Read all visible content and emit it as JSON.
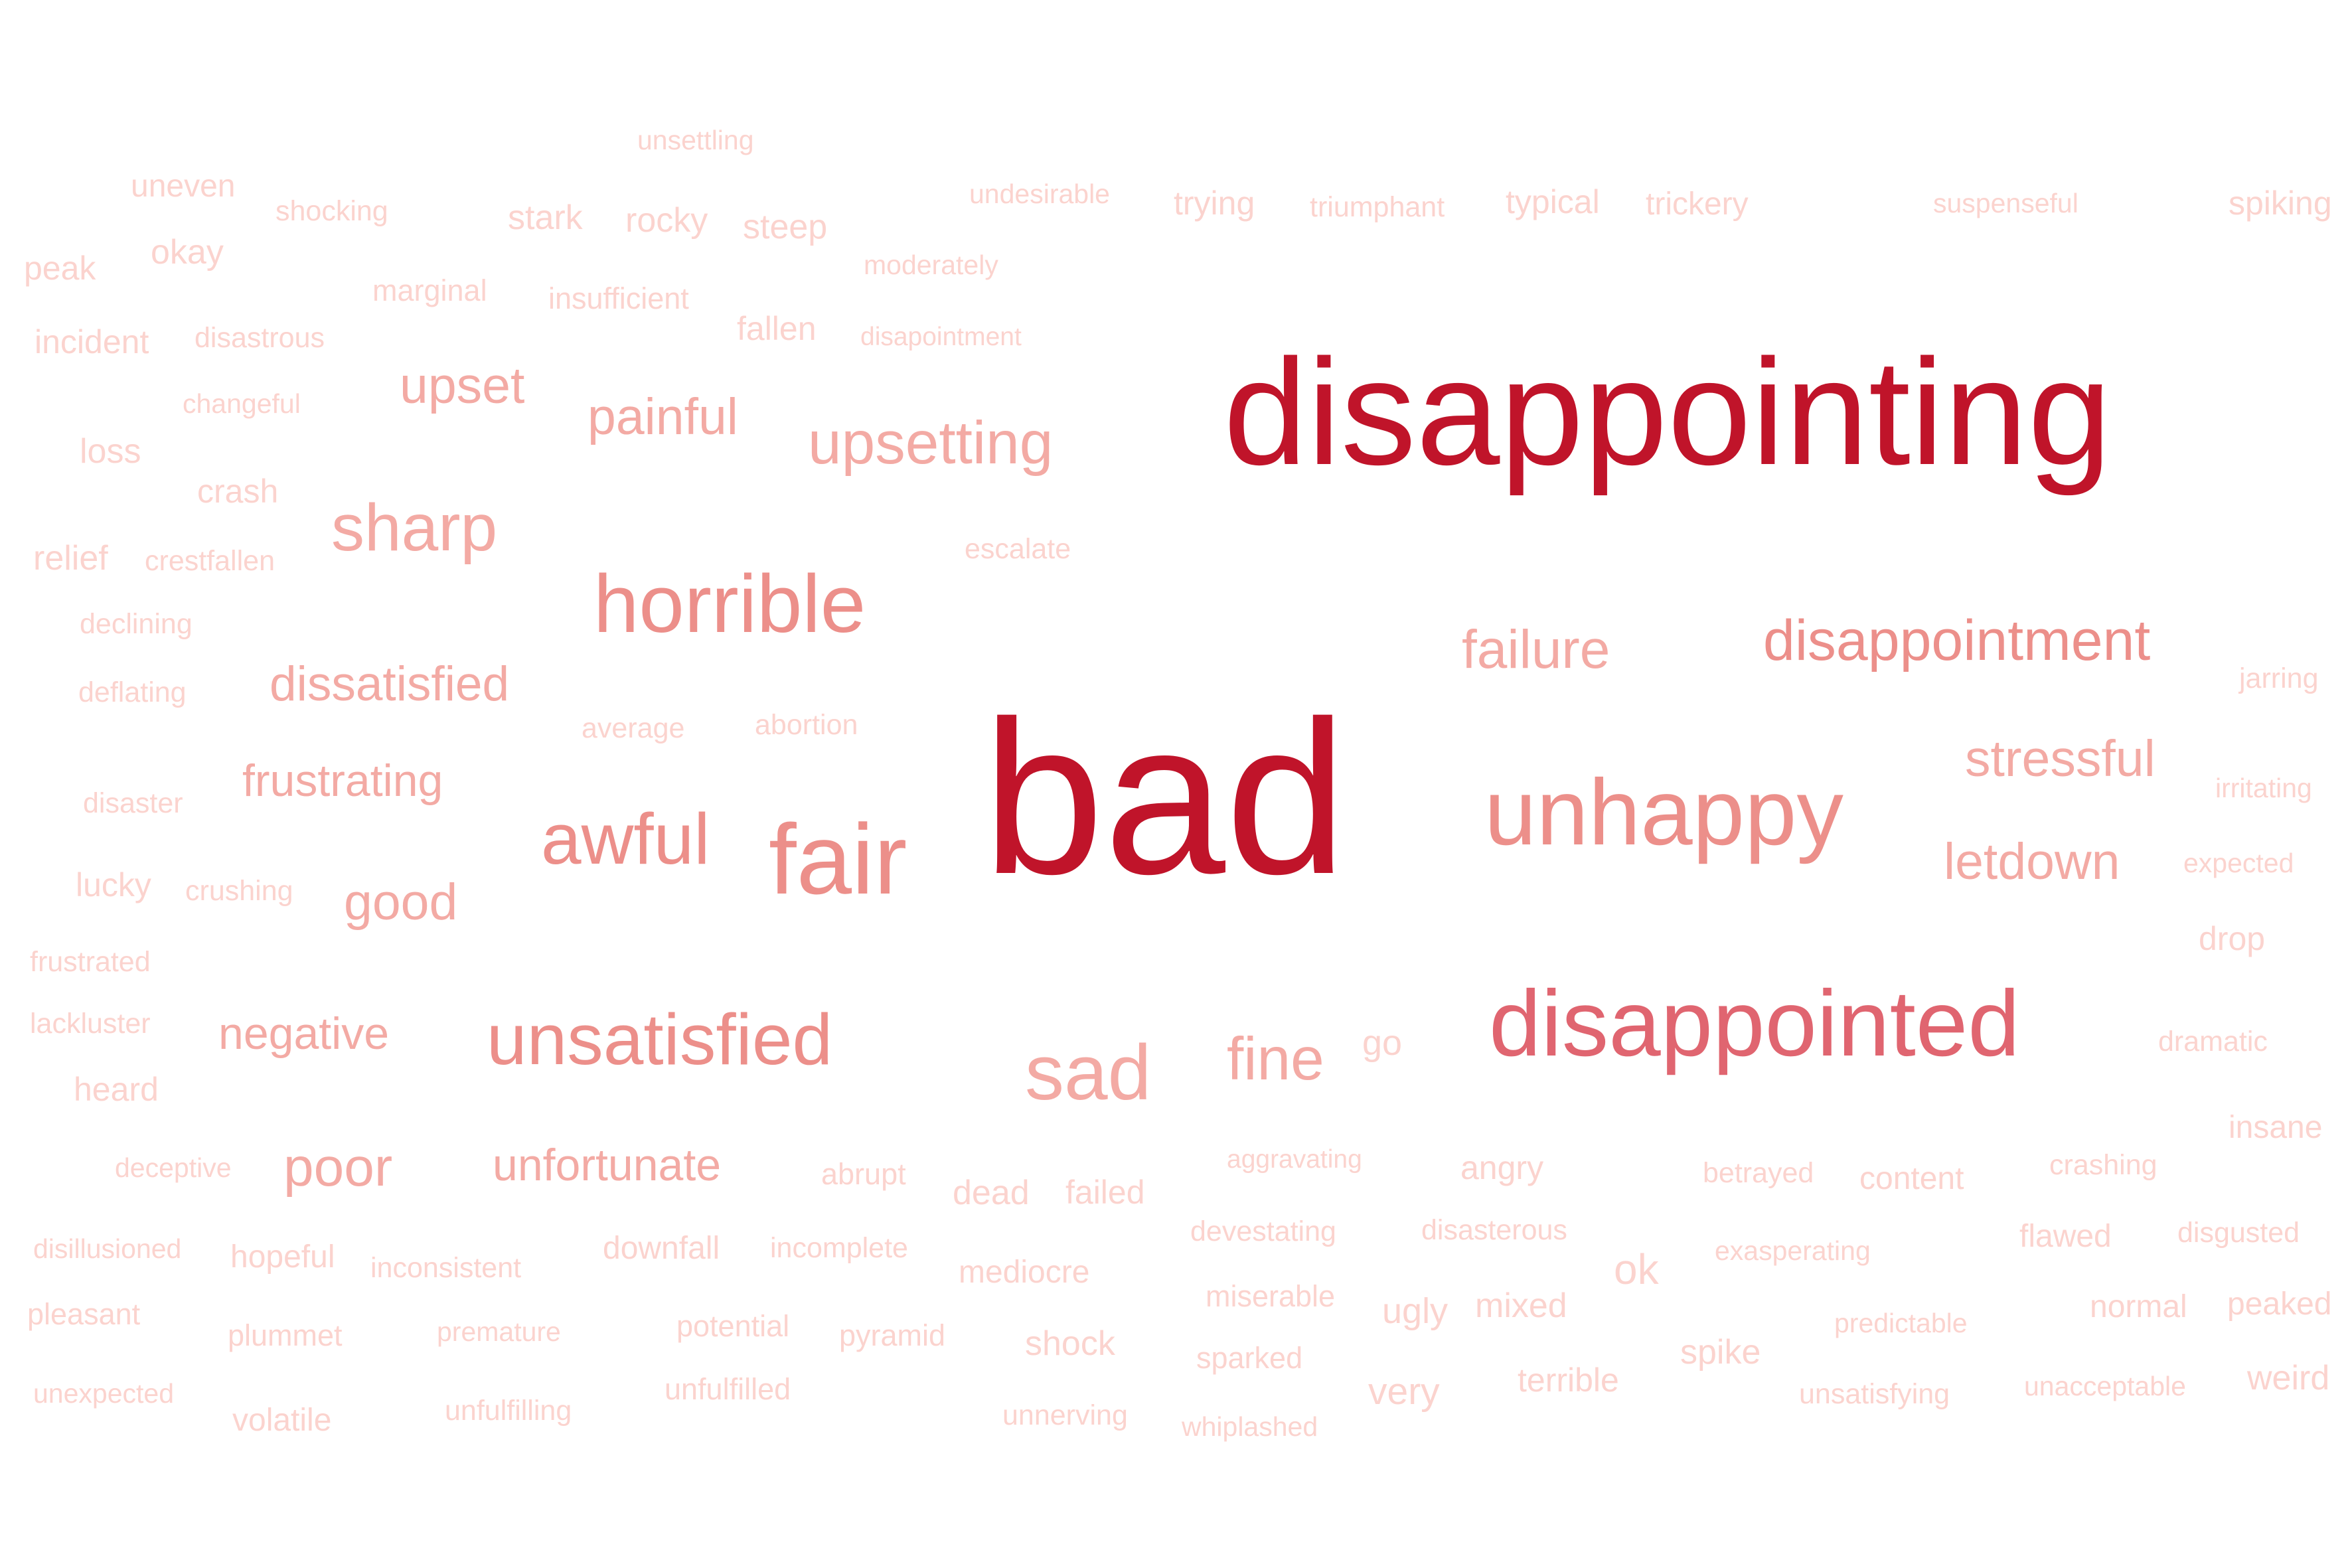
{
  "palette": {
    "darkest": "#c0142a",
    "dark": "#e06570",
    "medium": "#ec8f8a",
    "mediumLight": "#f3aaa4",
    "light": "#f8c3bd",
    "lightest": "#fbd3ce"
  },
  "words": [
    {
      "text": "bad",
      "shade": "darkest"
    },
    {
      "text": "disappointing",
      "shade": "darkest"
    },
    {
      "text": "disappointed",
      "shade": "dark"
    },
    {
      "text": "unhappy",
      "shade": "medium"
    },
    {
      "text": "disappointment",
      "shade": "medium"
    },
    {
      "text": "horrible",
      "shade": "medium"
    },
    {
      "text": "fair",
      "shade": "medium"
    },
    {
      "text": "awful",
      "shade": "medium"
    },
    {
      "text": "unsatisfied",
      "shade": "medium"
    },
    {
      "text": "sad",
      "shade": "mediumLight"
    },
    {
      "text": "failure",
      "shade": "mediumLight"
    },
    {
      "text": "stressful",
      "shade": "mediumLight"
    },
    {
      "text": "letdown",
      "shade": "mediumLight"
    },
    {
      "text": "upsetting",
      "shade": "mediumLight"
    },
    {
      "text": "sharp",
      "shade": "mediumLight"
    },
    {
      "text": "fine",
      "shade": "mediumLight"
    },
    {
      "text": "upset",
      "shade": "mediumLight"
    },
    {
      "text": "painful",
      "shade": "mediumLight"
    },
    {
      "text": "dissatisfied",
      "shade": "mediumLight"
    },
    {
      "text": "frustrating",
      "shade": "mediumLight"
    },
    {
      "text": "good",
      "shade": "mediumLight"
    },
    {
      "text": "negative",
      "shade": "mediumLight"
    },
    {
      "text": "poor",
      "shade": "mediumLight"
    },
    {
      "text": "unfortunate",
      "shade": "mediumLight"
    },
    {
      "text": "unsettling",
      "shade": "lightest"
    },
    {
      "text": "uneven",
      "shade": "lightest"
    },
    {
      "text": "shocking",
      "shade": "lightest"
    },
    {
      "text": "stark",
      "shade": "lightest"
    },
    {
      "text": "rocky",
      "shade": "lightest"
    },
    {
      "text": "steep",
      "shade": "lightest"
    },
    {
      "text": "undesirable",
      "shade": "lightest"
    },
    {
      "text": "trying",
      "shade": "lightest"
    },
    {
      "text": "triumphant",
      "shade": "lightest"
    },
    {
      "text": "typical",
      "shade": "lightest"
    },
    {
      "text": "trickery",
      "shade": "lightest"
    },
    {
      "text": "suspenseful",
      "shade": "lightest"
    },
    {
      "text": "spiking",
      "shade": "lightest"
    },
    {
      "text": "peak",
      "shade": "lightest"
    },
    {
      "text": "okay",
      "shade": "lightest"
    },
    {
      "text": "marginal",
      "shade": "lightest"
    },
    {
      "text": "insufficient",
      "shade": "lightest"
    },
    {
      "text": "moderately",
      "shade": "lightest"
    },
    {
      "text": "incident",
      "shade": "lightest"
    },
    {
      "text": "disastrous",
      "shade": "lightest"
    },
    {
      "text": "fallen",
      "shade": "lightest"
    },
    {
      "text": "disapointment",
      "shade": "lightest"
    },
    {
      "text": "changeful",
      "shade": "lightest"
    },
    {
      "text": "loss",
      "shade": "lightest"
    },
    {
      "text": "crash",
      "shade": "lightest"
    },
    {
      "text": "relief",
      "shade": "lightest"
    },
    {
      "text": "crestfallen",
      "shade": "lightest"
    },
    {
      "text": "escalate",
      "shade": "lightest"
    },
    {
      "text": "declining",
      "shade": "lightest"
    },
    {
      "text": "deflating",
      "shade": "lightest"
    },
    {
      "text": "average",
      "shade": "lightest"
    },
    {
      "text": "abortion",
      "shade": "lightest"
    },
    {
      "text": "jarring",
      "shade": "lightest"
    },
    {
      "text": "disaster",
      "shade": "lightest"
    },
    {
      "text": "irritating",
      "shade": "lightest"
    },
    {
      "text": "lucky",
      "shade": "lightest"
    },
    {
      "text": "crushing",
      "shade": "lightest"
    },
    {
      "text": "expected",
      "shade": "lightest"
    },
    {
      "text": "drop",
      "shade": "lightest"
    },
    {
      "text": "frustrated",
      "shade": "lightest"
    },
    {
      "text": "lackluster",
      "shade": "lightest"
    },
    {
      "text": "go",
      "shade": "lightest"
    },
    {
      "text": "dramatic",
      "shade": "lightest"
    },
    {
      "text": "heard",
      "shade": "lightest"
    },
    {
      "text": "insane",
      "shade": "lightest"
    },
    {
      "text": "deceptive",
      "shade": "lightest"
    },
    {
      "text": "abrupt",
      "shade": "lightest"
    },
    {
      "text": "aggravating",
      "shade": "lightest"
    },
    {
      "text": "angry",
      "shade": "lightest"
    },
    {
      "text": "betrayed",
      "shade": "lightest"
    },
    {
      "text": "crashing",
      "shade": "lightest"
    },
    {
      "text": "dead",
      "shade": "lightest"
    },
    {
      "text": "failed",
      "shade": "lightest"
    },
    {
      "text": "content",
      "shade": "lightest"
    },
    {
      "text": "disillusioned",
      "shade": "lightest"
    },
    {
      "text": "hopeful",
      "shade": "lightest"
    },
    {
      "text": "inconsistent",
      "shade": "lightest"
    },
    {
      "text": "downfall",
      "shade": "lightest"
    },
    {
      "text": "incomplete",
      "shade": "lightest"
    },
    {
      "text": "devestating",
      "shade": "lightest"
    },
    {
      "text": "disasterous",
      "shade": "lightest"
    },
    {
      "text": "flawed",
      "shade": "lightest"
    },
    {
      "text": "disgusted",
      "shade": "lightest"
    },
    {
      "text": "mediocre",
      "shade": "lightest"
    },
    {
      "text": "ok",
      "shade": "lightest"
    },
    {
      "text": "exasperating",
      "shade": "lightest"
    },
    {
      "text": "pleasant",
      "shade": "lightest"
    },
    {
      "text": "miserable",
      "shade": "lightest"
    },
    {
      "text": "ugly",
      "shade": "lightest"
    },
    {
      "text": "mixed",
      "shade": "lightest"
    },
    {
      "text": "normal",
      "shade": "lightest"
    },
    {
      "text": "peaked",
      "shade": "lightest"
    },
    {
      "text": "plummet",
      "shade": "lightest"
    },
    {
      "text": "premature",
      "shade": "lightest"
    },
    {
      "text": "potential",
      "shade": "lightest"
    },
    {
      "text": "pyramid",
      "shade": "lightest"
    },
    {
      "text": "shock",
      "shade": "lightest"
    },
    {
      "text": "predictable",
      "shade": "lightest"
    },
    {
      "text": "sparked",
      "shade": "lightest"
    },
    {
      "text": "spike",
      "shade": "lightest"
    },
    {
      "text": "unexpected",
      "shade": "lightest"
    },
    {
      "text": "unfulfilled",
      "shade": "lightest"
    },
    {
      "text": "very",
      "shade": "lightest"
    },
    {
      "text": "terrible",
      "shade": "lightest"
    },
    {
      "text": "weird",
      "shade": "lightest"
    },
    {
      "text": "unacceptable",
      "shade": "lightest"
    },
    {
      "text": "volatile",
      "shade": "lightest"
    },
    {
      "text": "unfulfilling",
      "shade": "lightest"
    },
    {
      "text": "unnerving",
      "shade": "lightest"
    },
    {
      "text": "whiplashed",
      "shade": "lightest"
    },
    {
      "text": "unsatisfying",
      "shade": "lightest"
    }
  ]
}
